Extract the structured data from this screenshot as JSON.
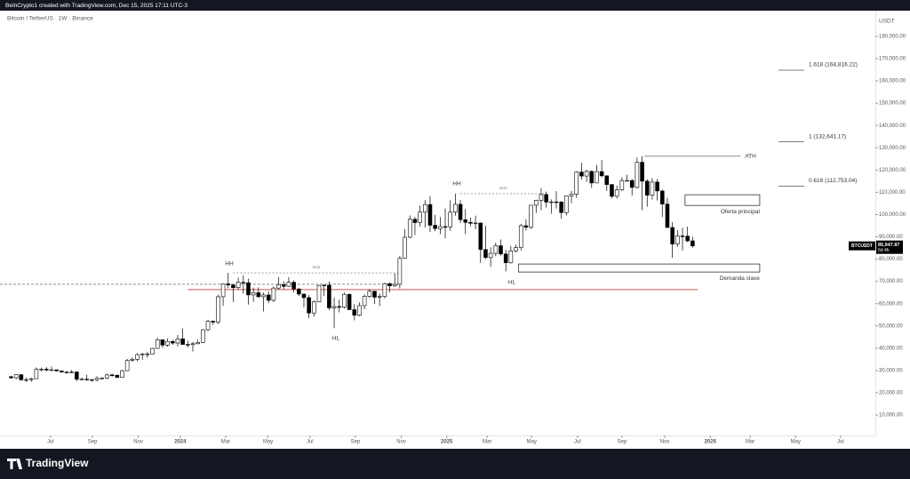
{
  "header": {
    "caption": "BeInCrypto1 created with TradingView.com, Dec 15, 2025 17:11 UTC-3"
  },
  "footer": {
    "brand": "TradingView"
  },
  "chart_data": {
    "type": "candlestick",
    "title": "Bitcoin / TetherUS · 1W · Binance",
    "y_unit": "USDT",
    "open": [
      27200,
      26700,
      28100,
      25800,
      25900,
      26300,
      30500,
      30600,
      30200,
      30300,
      29800,
      29300,
      29100,
      29300,
      26100,
      26100,
      25900,
      25800,
      26500,
      26600,
      28000,
      27900,
      26900,
      29900,
      34500,
      35000,
      37100,
      37400,
      37400,
      39900,
      43800,
      41400,
      43000,
      42300,
      44200,
      41700,
      41600,
      42000,
      42600,
      48300,
      52100,
      51700,
      63100,
      68900,
      68400,
      67200,
      69600,
      69400,
      63900,
      64900,
      63100,
      63900,
      61500,
      67000,
      68500,
      67800,
      69600,
      66600,
      64300,
      62700,
      55800,
      60800,
      68200,
      68300,
      58100,
      58700,
      58400,
      64200,
      57300,
      54800,
      59100,
      63300,
      65600,
      62900,
      63200,
      69000,
      68000,
      68700,
      80400,
      89800,
      97900,
      96400,
      101100,
      104500,
      95200,
      93700,
      94600,
      94500,
      101100,
      104600,
      97700,
      96500,
      96100,
      96200,
      84300,
      80700,
      82600,
      86000,
      82300,
      78400,
      83700,
      85200,
      95000,
      94300,
      104200,
      106400,
      109000,
      105600,
      105700,
      105600,
      100900,
      108400,
      109200,
      119100,
      117300,
      119400,
      114200,
      119300,
      117400,
      113500,
      108200,
      111100,
      115300,
      115300,
      112200,
      123500,
      115000,
      108700,
      114600,
      110600,
      104700,
      94200,
      86800,
      90400,
      90300,
      88200
    ],
    "high": [
      27600,
      28400,
      28400,
      26800,
      26800,
      31400,
      31300,
      31500,
      31800,
      30400,
      30000,
      29700,
      30200,
      29700,
      26800,
      28100,
      26100,
      27400,
      27000,
      28600,
      28600,
      28000,
      30300,
      35200,
      35900,
      37900,
      37900,
      38400,
      40200,
      44700,
      43900,
      44400,
      43800,
      45900,
      48900,
      43300,
      42800,
      43800,
      48600,
      52800,
      52500,
      64000,
      69200,
      73800,
      68900,
      71700,
      72700,
      71200,
      67200,
      67300,
      65000,
      65500,
      67700,
      71900,
      70000,
      71900,
      70500,
      67000,
      64500,
      63800,
      61400,
      68300,
      68600,
      70000,
      62700,
      61800,
      65000,
      64500,
      59800,
      60600,
      64100,
      66500,
      65700,
      64500,
      69400,
      69500,
      73600,
      81500,
      93500,
      99600,
      98900,
      104000,
      106500,
      108400,
      99900,
      98900,
      102700,
      106400,
      109400,
      106500,
      102500,
      98600,
      99500,
      96500,
      95000,
      85300,
      87400,
      88800,
      84200,
      86000,
      86500,
      95800,
      97900,
      104300,
      106700,
      111900,
      110300,
      106800,
      110500,
      106100,
      108500,
      110600,
      119500,
      123200,
      120200,
      119800,
      122300,
      124400,
      117600,
      113600,
      113000,
      116700,
      117900,
      116000,
      125600,
      126200,
      115900,
      116400,
      116000,
      111200,
      107500,
      96600,
      93000,
      94100,
      94600,
      90000
    ],
    "low": [
      26300,
      26100,
      25400,
      24800,
      24900,
      26200,
      29600,
      29700,
      29800,
      29500,
      29000,
      28600,
      28800,
      25200,
      25800,
      25400,
      24900,
      25100,
      26000,
      26200,
      27200,
      26600,
      26800,
      29700,
      33900,
      34100,
      34800,
      35800,
      37300,
      39700,
      40200,
      40600,
      41500,
      40800,
      41400,
      40300,
      38500,
      41800,
      42300,
      47700,
      50500,
      50900,
      59000,
      66900,
      60800,
      66400,
      64500,
      59600,
      60800,
      62800,
      56500,
      60200,
      60700,
      66300,
      66500,
      67500,
      65000,
      63400,
      58400,
      53500,
      54300,
      60600,
      63400,
      57100,
      49000,
      56100,
      57800,
      57200,
      52500,
      54300,
      57500,
      62700,
      59800,
      58900,
      62300,
      65100,
      67500,
      66800,
      80300,
      89400,
      90800,
      94600,
      94200,
      92200,
      92500,
      91200,
      89300,
      92800,
      99500,
      96200,
      91200,
      94700,
      93400,
      78300,
      80000,
      76600,
      81300,
      81600,
      74500,
      78000,
      83100,
      83900,
      92800,
      93500,
      100700,
      102000,
      103100,
      100400,
      102700,
      98200,
      99600,
      105100,
      107500,
      115700,
      114700,
      112000,
      114200,
      116800,
      110600,
      107300,
      107200,
      110600,
      114800,
      108600,
      111700,
      102000,
      103500,
      106700,
      106300,
      98900,
      94000,
      80600,
      85500,
      83800,
      87600,
      85100
    ],
    "close": [
      26700,
      28100,
      25800,
      25900,
      26300,
      30500,
      30600,
      30200,
      30300,
      29800,
      29300,
      29100,
      29300,
      26100,
      26100,
      25900,
      25800,
      26500,
      26600,
      28000,
      27900,
      26900,
      29900,
      34500,
      35000,
      37100,
      37400,
      37400,
      39900,
      43800,
      41400,
      43000,
      42300,
      44200,
      41700,
      41600,
      42000,
      42600,
      48300,
      52100,
      51700,
      63100,
      68900,
      68400,
      67200,
      69600,
      69400,
      63900,
      64900,
      63100,
      63900,
      61500,
      67000,
      68500,
      67800,
      69600,
      66600,
      64300,
      62700,
      55800,
      60800,
      68200,
      68300,
      58100,
      58700,
      58400,
      64200,
      57300,
      54800,
      59100,
      63300,
      65600,
      62900,
      63200,
      69000,
      68000,
      68700,
      80400,
      89800,
      97900,
      96400,
      101100,
      104500,
      95200,
      93700,
      94600,
      94500,
      101100,
      104600,
      97700,
      96500,
      96100,
      96200,
      84300,
      80700,
      82600,
      86000,
      82300,
      78400,
      83700,
      85200,
      95000,
      94300,
      104200,
      106400,
      109000,
      105600,
      105700,
      105600,
      100900,
      108400,
      109200,
      119100,
      117300,
      119400,
      114200,
      119300,
      117400,
      113500,
      108200,
      111100,
      115300,
      115300,
      112200,
      123500,
      115000,
      108700,
      114600,
      110600,
      104700,
      94200,
      86800,
      90400,
      90300,
      88200,
      85947.87
    ],
    "up_color": "#ffffff",
    "down_color": "#000000",
    "outline_color": "#000000",
    "xlim": [
      -2.2,
      171.2
    ],
    "xticks": [
      {
        "value": 7.8,
        "label": "Jul"
      },
      {
        "value": 16.1,
        "label": "Sep"
      },
      {
        "value": 25.2,
        "label": "Nov"
      },
      {
        "value": 33.5,
        "label": "2024"
      },
      {
        "value": 42.5,
        "label": "Mar"
      },
      {
        "value": 50.9,
        "label": "May"
      },
      {
        "value": 59.2,
        "label": "Jul"
      },
      {
        "value": 68.2,
        "label": "Sep"
      },
      {
        "value": 77.3,
        "label": "Nov"
      },
      {
        "value": 86.3,
        "label": "2025"
      },
      {
        "value": 94.3,
        "label": "Mar"
      },
      {
        "value": 103.1,
        "label": "May"
      },
      {
        "value": 112.2,
        "label": "Jul"
      },
      {
        "value": 121.0,
        "label": "Sep"
      },
      {
        "value": 129.5,
        "label": "Nov"
      },
      {
        "value": 138.5,
        "label": "2026"
      },
      {
        "value": 146.4,
        "label": "Mar"
      },
      {
        "value": 155.4,
        "label": "May"
      },
      {
        "value": 164.3,
        "label": "Jul"
      }
    ],
    "ylim": [
      820,
      191560
    ],
    "yticks": [
      {
        "value": 10000,
        "label": "10,000.00"
      },
      {
        "value": 20000,
        "label": "20,000.00"
      },
      {
        "value": 30000,
        "label": "30,000.00"
      },
      {
        "value": 40000,
        "label": "40,000.00"
      },
      {
        "value": 50000,
        "label": "50,000.00"
      },
      {
        "value": 60000,
        "label": "60,000.00"
      },
      {
        "value": 70000,
        "label": "70,000.00"
      },
      {
        "value": 80000,
        "label": "80,000.00"
      },
      {
        "value": 90000,
        "label": "90,000.00"
      },
      {
        "value": 100000,
        "label": "100,000.00"
      },
      {
        "value": 110000,
        "label": "110,000.00"
      },
      {
        "value": 120000,
        "label": "120,000.00"
      },
      {
        "value": 130000,
        "label": "130,000.00"
      },
      {
        "value": 140000,
        "label": "140,000.00"
      },
      {
        "value": 150000,
        "label": "150,000.00"
      },
      {
        "value": 160000,
        "label": "160,000.00"
      },
      {
        "value": 170000,
        "label": "170,000.00"
      },
      {
        "value": 180000,
        "label": "180,000.00"
      }
    ],
    "annotations": [
      "HH",
      "HL",
      "HH",
      "HL"
    ],
    "ath": {
      "label": "ATH",
      "value": 126200
    },
    "zones": [
      {
        "label": "Oferta principal",
        "low": 104100,
        "high": 108900
      },
      {
        "label": "Demanda clave",
        "low": 74200,
        "high": 77800
      }
    ],
    "fib": [
      {
        "label": "1.618 (164,816.22)",
        "value": 164816.22
      },
      {
        "label": "1 (132,641.17)",
        "value": 132641.17
      },
      {
        "label": "0.618 (112,753.04)",
        "value": 112753.04
      }
    ],
    "bos": [
      {
        "label": "BOS",
        "value": 73800
      },
      {
        "label": "BOS",
        "value": 109400
      }
    ],
    "lines": [
      {
        "value": 66300,
        "color": "#d9534f"
      },
      {
        "value": 68700,
        "color": "#666666"
      }
    ],
    "last_price": {
      "symbol": "BTCUSDT",
      "value": 85947.87,
      "label": "85,947.87",
      "countdown": "6d 4h"
    }
  }
}
